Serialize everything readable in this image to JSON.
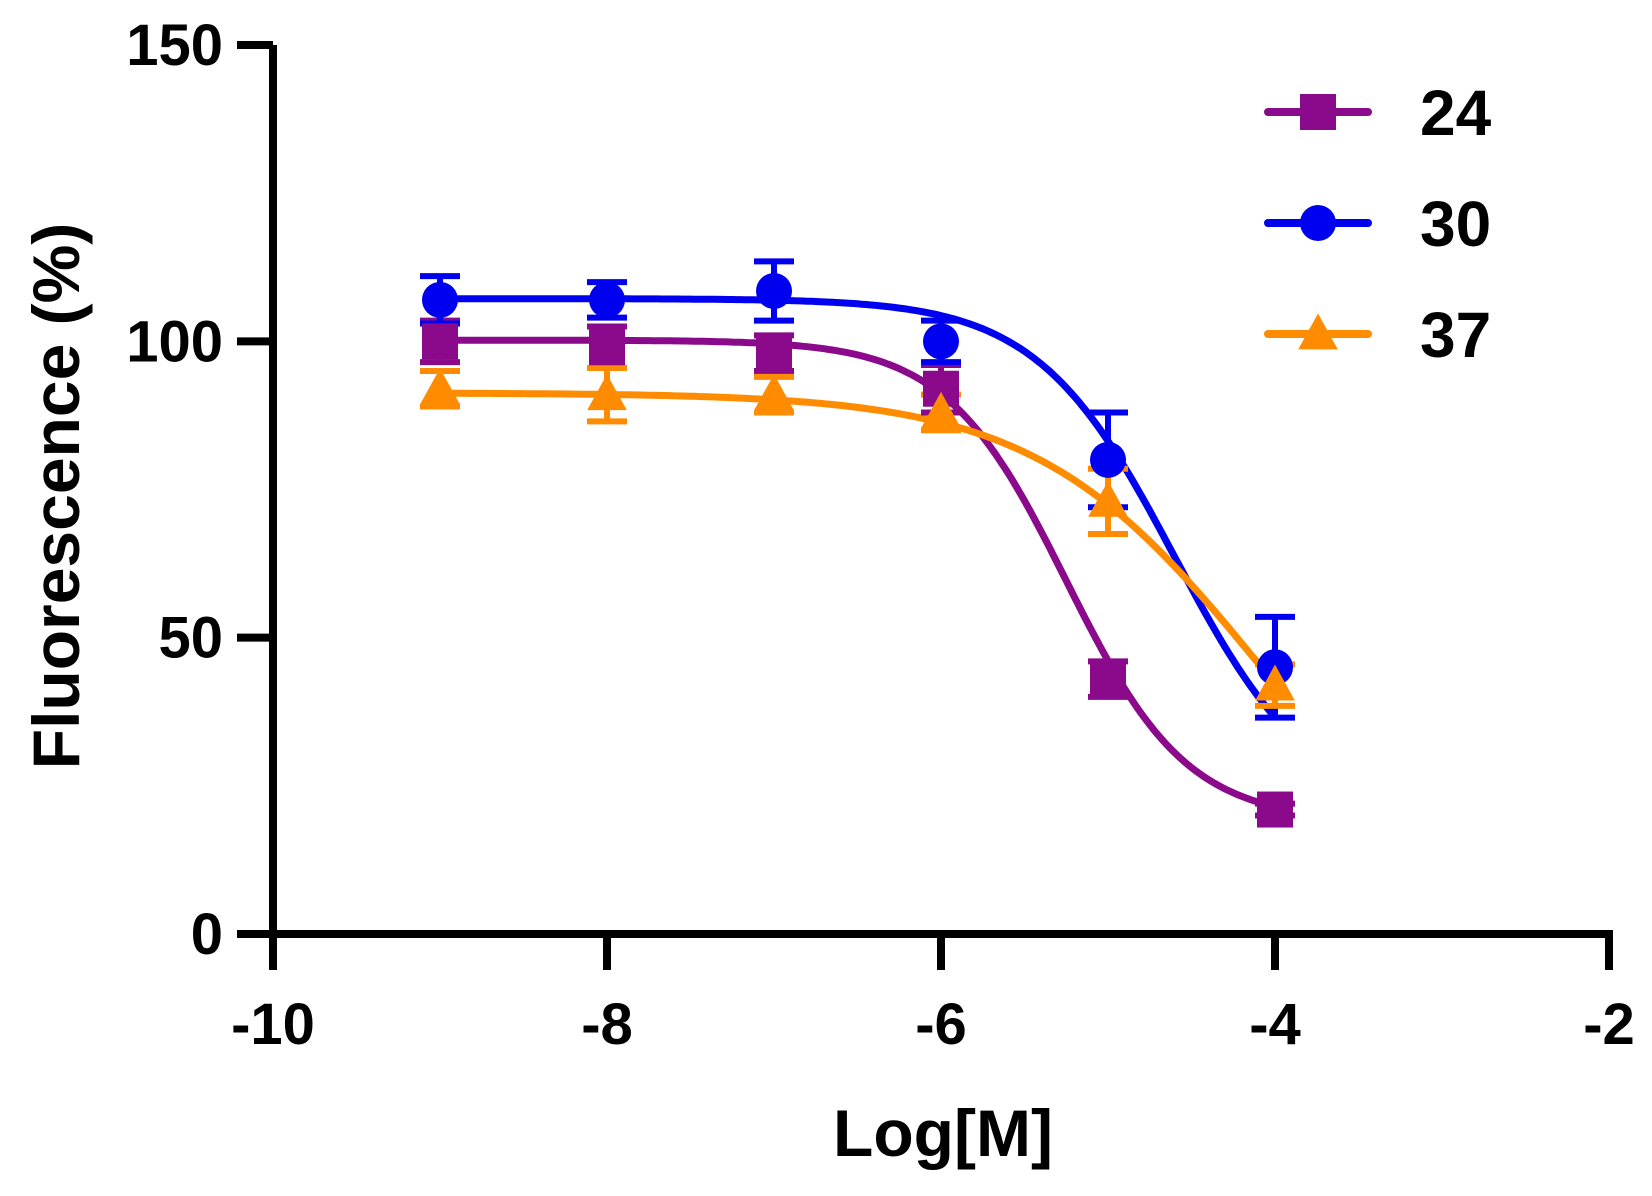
{
  "chart_data": {
    "type": "scatter",
    "title": "",
    "xlabel": "Log[M]",
    "ylabel": "Fluorescence (%)",
    "xlim": [
      -10,
      -2
    ],
    "ylim": [
      0,
      150
    ],
    "xticks": [
      -10,
      -8,
      -6,
      -4,
      -2
    ],
    "yticks": [
      0,
      50,
      100,
      150
    ],
    "xtick_labels": [
      "-10",
      "-8",
      "-6",
      "-4",
      "-2"
    ],
    "ytick_labels": [
      "0",
      "50",
      "100",
      "150"
    ],
    "legend_position": "top-right",
    "series": [
      {
        "name": "24",
        "color": "#8B0A8B",
        "marker": "square",
        "x": [
          -9,
          -8,
          -7,
          -6,
          -5,
          -4
        ],
        "y": [
          100,
          99,
          98,
          92,
          43,
          21
        ],
        "err": [
          3.5,
          3.5,
          3,
          4,
          3,
          1
        ],
        "fit": {
          "top": 100.2,
          "bottom": 19,
          "logEC50": -5.25,
          "hill": 1.2
        }
      },
      {
        "name": "30",
        "color": "#0000F0",
        "marker": "circle",
        "x": [
          -9,
          -8,
          -7,
          -6,
          -5,
          -4
        ],
        "y": [
          107,
          107,
          108.5,
          100,
          80,
          45
        ],
        "err": [
          4,
          3,
          5,
          3.5,
          8,
          8.5
        ],
        "fit": {
          "top": 107.2,
          "bottom": 20,
          "logEC50": -4.6,
          "hill": 1.05
        }
      },
      {
        "name": "37",
        "color": "#FF8C00",
        "marker": "triangle",
        "x": [
          -9,
          -8,
          -7,
          -6,
          -5,
          -4
        ],
        "y": [
          92,
          91,
          91,
          88,
          73,
          42
        ],
        "err": [
          3,
          4.5,
          3,
          3,
          5.5,
          3.5
        ],
        "fit": {
          "top": 91.3,
          "bottom": 0,
          "logEC50": -4.1,
          "hill": 0.65
        }
      }
    ]
  }
}
